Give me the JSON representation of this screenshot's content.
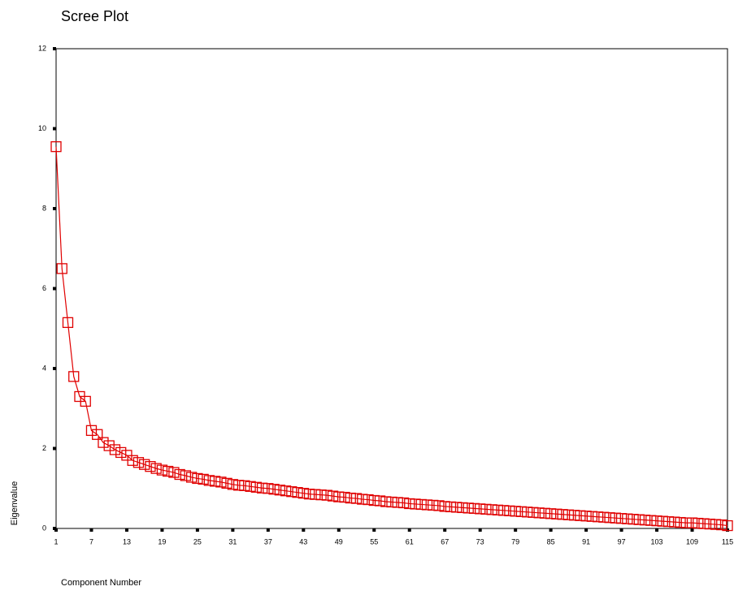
{
  "chart_data": {
    "type": "line",
    "title": "Scree Plot",
    "xlabel": "Component Number",
    "ylabel": "Eigenvalue",
    "color": "#e00000",
    "x": [
      1,
      2,
      3,
      4,
      5,
      6,
      7,
      8,
      9,
      10,
      11,
      12,
      13,
      14,
      15,
      16,
      17,
      18,
      19,
      20,
      21,
      22,
      23,
      24,
      25,
      26,
      27,
      28,
      29,
      30,
      31,
      32,
      33,
      34,
      35,
      36,
      37,
      38,
      39,
      40,
      41,
      42,
      43,
      44,
      45,
      46,
      47,
      48,
      49,
      50,
      51,
      52,
      53,
      54,
      55,
      56,
      57,
      58,
      59,
      60,
      61,
      62,
      63,
      64,
      65,
      66,
      67,
      68,
      69,
      70,
      71,
      72,
      73,
      74,
      75,
      76,
      77,
      78,
      79,
      80,
      81,
      82,
      83,
      84,
      85,
      86,
      87,
      88,
      89,
      90,
      91,
      92,
      93,
      94,
      95,
      96,
      97,
      98,
      99,
      100,
      101,
      102,
      103,
      104,
      105,
      106,
      107,
      108,
      109,
      110,
      111,
      112,
      113,
      114,
      115
    ],
    "values": [
      9.55,
      6.5,
      5.15,
      3.8,
      3.3,
      3.18,
      2.45,
      2.35,
      2.15,
      2.07,
      1.97,
      1.9,
      1.83,
      1.7,
      1.65,
      1.6,
      1.55,
      1.5,
      1.46,
      1.43,
      1.4,
      1.35,
      1.32,
      1.28,
      1.25,
      1.23,
      1.2,
      1.18,
      1.16,
      1.13,
      1.1,
      1.08,
      1.07,
      1.05,
      1.03,
      1.01,
      1.0,
      0.98,
      0.96,
      0.94,
      0.92,
      0.9,
      0.88,
      0.86,
      0.85,
      0.84,
      0.83,
      0.81,
      0.79,
      0.78,
      0.76,
      0.75,
      0.73,
      0.72,
      0.7,
      0.69,
      0.67,
      0.66,
      0.65,
      0.64,
      0.62,
      0.61,
      0.6,
      0.59,
      0.58,
      0.57,
      0.55,
      0.54,
      0.53,
      0.52,
      0.51,
      0.5,
      0.49,
      0.48,
      0.47,
      0.46,
      0.45,
      0.44,
      0.43,
      0.42,
      0.41,
      0.4,
      0.39,
      0.38,
      0.37,
      0.36,
      0.35,
      0.34,
      0.33,
      0.32,
      0.31,
      0.3,
      0.29,
      0.28,
      0.27,
      0.26,
      0.25,
      0.24,
      0.23,
      0.22,
      0.21,
      0.2,
      0.19,
      0.18,
      0.17,
      0.16,
      0.15,
      0.14,
      0.14,
      0.13,
      0.12,
      0.11,
      0.1,
      0.09,
      0.07
    ],
    "xlim": [
      1,
      115
    ],
    "xticks": [
      1,
      7,
      13,
      19,
      25,
      31,
      37,
      43,
      49,
      55,
      61,
      67,
      73,
      79,
      85,
      91,
      97,
      103,
      109,
      115
    ],
    "ylim": [
      0,
      12
    ],
    "yticks": [
      0,
      2,
      4,
      6,
      8,
      10,
      12
    ]
  }
}
